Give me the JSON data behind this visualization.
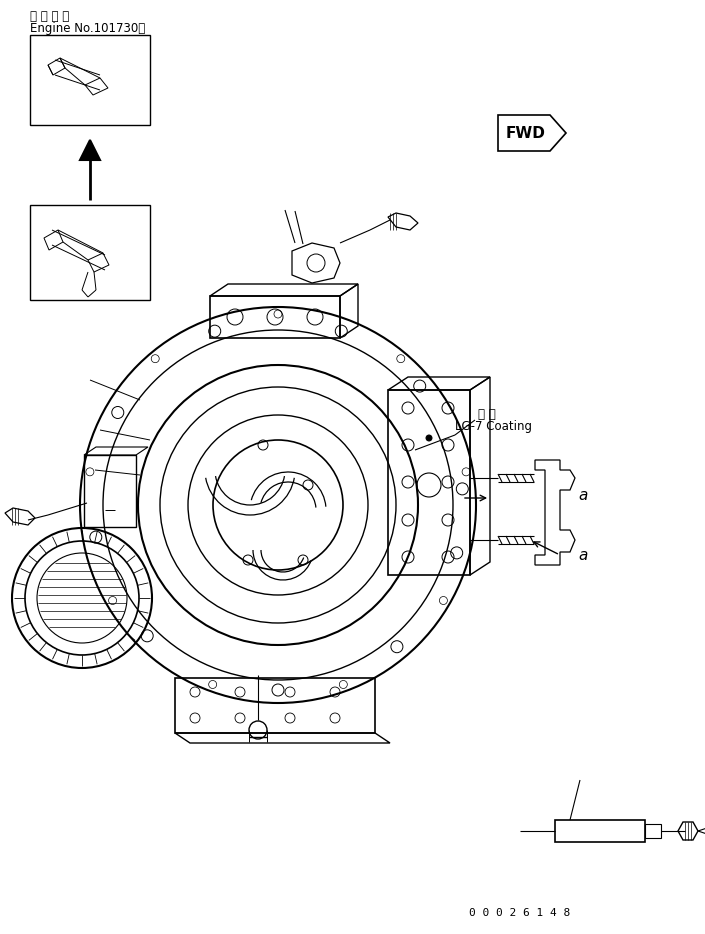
{
  "title_line1": "適 用 号 機",
  "title_line2": "Engine No.101730～",
  "annotation_japanese": "塗 布",
  "annotation_english": "LG-7 Coating",
  "fwd_label": "FWD",
  "part_number": "0 0 0 2 6 1 4 8",
  "label_a": "a",
  "bg_color": "#ffffff",
  "line_color": "#000000",
  "fig_width": 7.05,
  "fig_height": 9.34,
  "dpi": 100
}
